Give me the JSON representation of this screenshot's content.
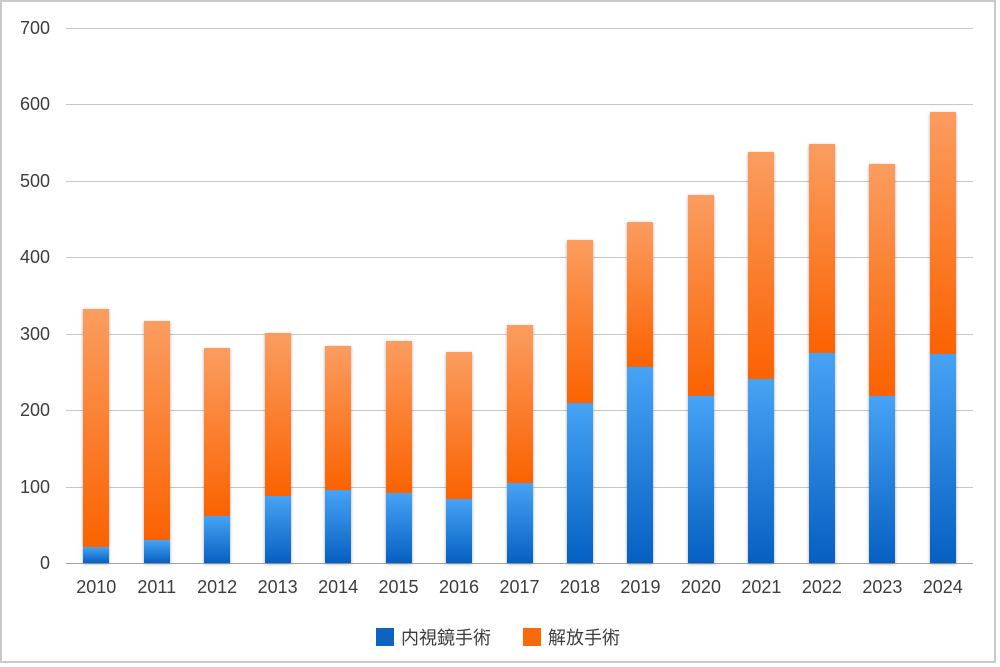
{
  "chart_data": {
    "type": "bar",
    "stacked": true,
    "categories": [
      "2010",
      "2011",
      "2012",
      "2013",
      "2014",
      "2015",
      "2016",
      "2017",
      "2018",
      "2019",
      "2020",
      "2021",
      "2022",
      "2023",
      "2024"
    ],
    "series": [
      {
        "name": "内視鏡手術",
        "values": [
          21,
          30,
          62,
          88,
          95,
          92,
          84,
          105,
          210,
          256,
          218,
          241,
          275,
          219,
          273
        ],
        "gradient_top": "#47A3F5",
        "gradient_bottom": "#0660C2",
        "legend_color": "#0D64C0"
      },
      {
        "name": "解放手術",
        "values": [
          311,
          287,
          220,
          213,
          189,
          198,
          192,
          207,
          213,
          190,
          264,
          297,
          273,
          303,
          317
        ],
        "gradient_top": "#FB9D60",
        "gradient_bottom": "#FB6200",
        "legend_color": "#F96A0A"
      }
    ],
    "totals": [
      332,
      317,
      282,
      301,
      284,
      290,
      276,
      312,
      423,
      446,
      482,
      538,
      548,
      522,
      590
    ],
    "ylim": [
      0,
      700
    ],
    "ytick_step": 100,
    "ytick_labels": [
      "0",
      "100",
      "200",
      "300",
      "400",
      "500",
      "600",
      "700"
    ],
    "grid": true,
    "legend_position": "bottom"
  }
}
